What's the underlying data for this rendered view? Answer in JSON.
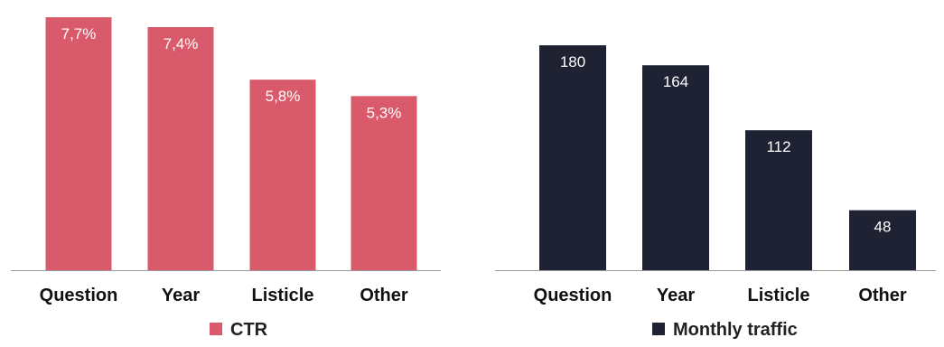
{
  "chart_data": [
    {
      "type": "bar",
      "categories": [
        "Question",
        "Year",
        "Listicle",
        "Other"
      ],
      "series": [
        {
          "name": "CTR",
          "values": [
            7.7,
            7.4,
            5.8,
            5.3
          ],
          "data_labels": [
            "7,7%",
            "7,4%",
            "5,8%",
            "5,3%"
          ],
          "color": "#d95a6a"
        }
      ],
      "ylim": [
        0,
        7.95
      ],
      "grid": false,
      "legend": "bottom-center"
    },
    {
      "type": "bar",
      "categories": [
        "Question",
        "Year",
        "Listicle",
        "Other"
      ],
      "series": [
        {
          "name": "Monthly traffic",
          "values": [
            180,
            164,
            112,
            48
          ],
          "data_labels": [
            "180",
            "164",
            "112",
            "48"
          ],
          "color": "#1e2233"
        }
      ],
      "ylim": [
        0,
        196
      ],
      "grid": false,
      "legend": "bottom-center"
    }
  ]
}
